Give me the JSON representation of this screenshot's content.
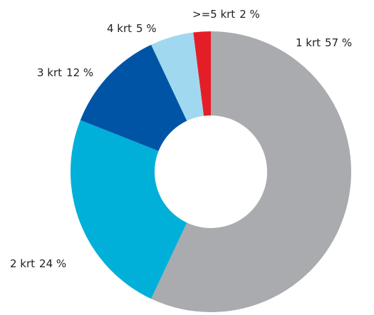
{
  "chart_data": {
    "type": "donut",
    "categories": [
      "1 krt",
      "2 krt",
      "3 krt",
      "4 krt",
      ">=5 krt"
    ],
    "values": [
      57,
      24,
      12,
      5,
      2
    ],
    "value_labels": [
      "57 %",
      "24 %",
      "12 %",
      "5 %",
      "2 %"
    ],
    "colors": [
      "#a9abae",
      "#00b0d8",
      "#0054a6",
      "#a0d9ef",
      "#e41e26"
    ]
  }
}
